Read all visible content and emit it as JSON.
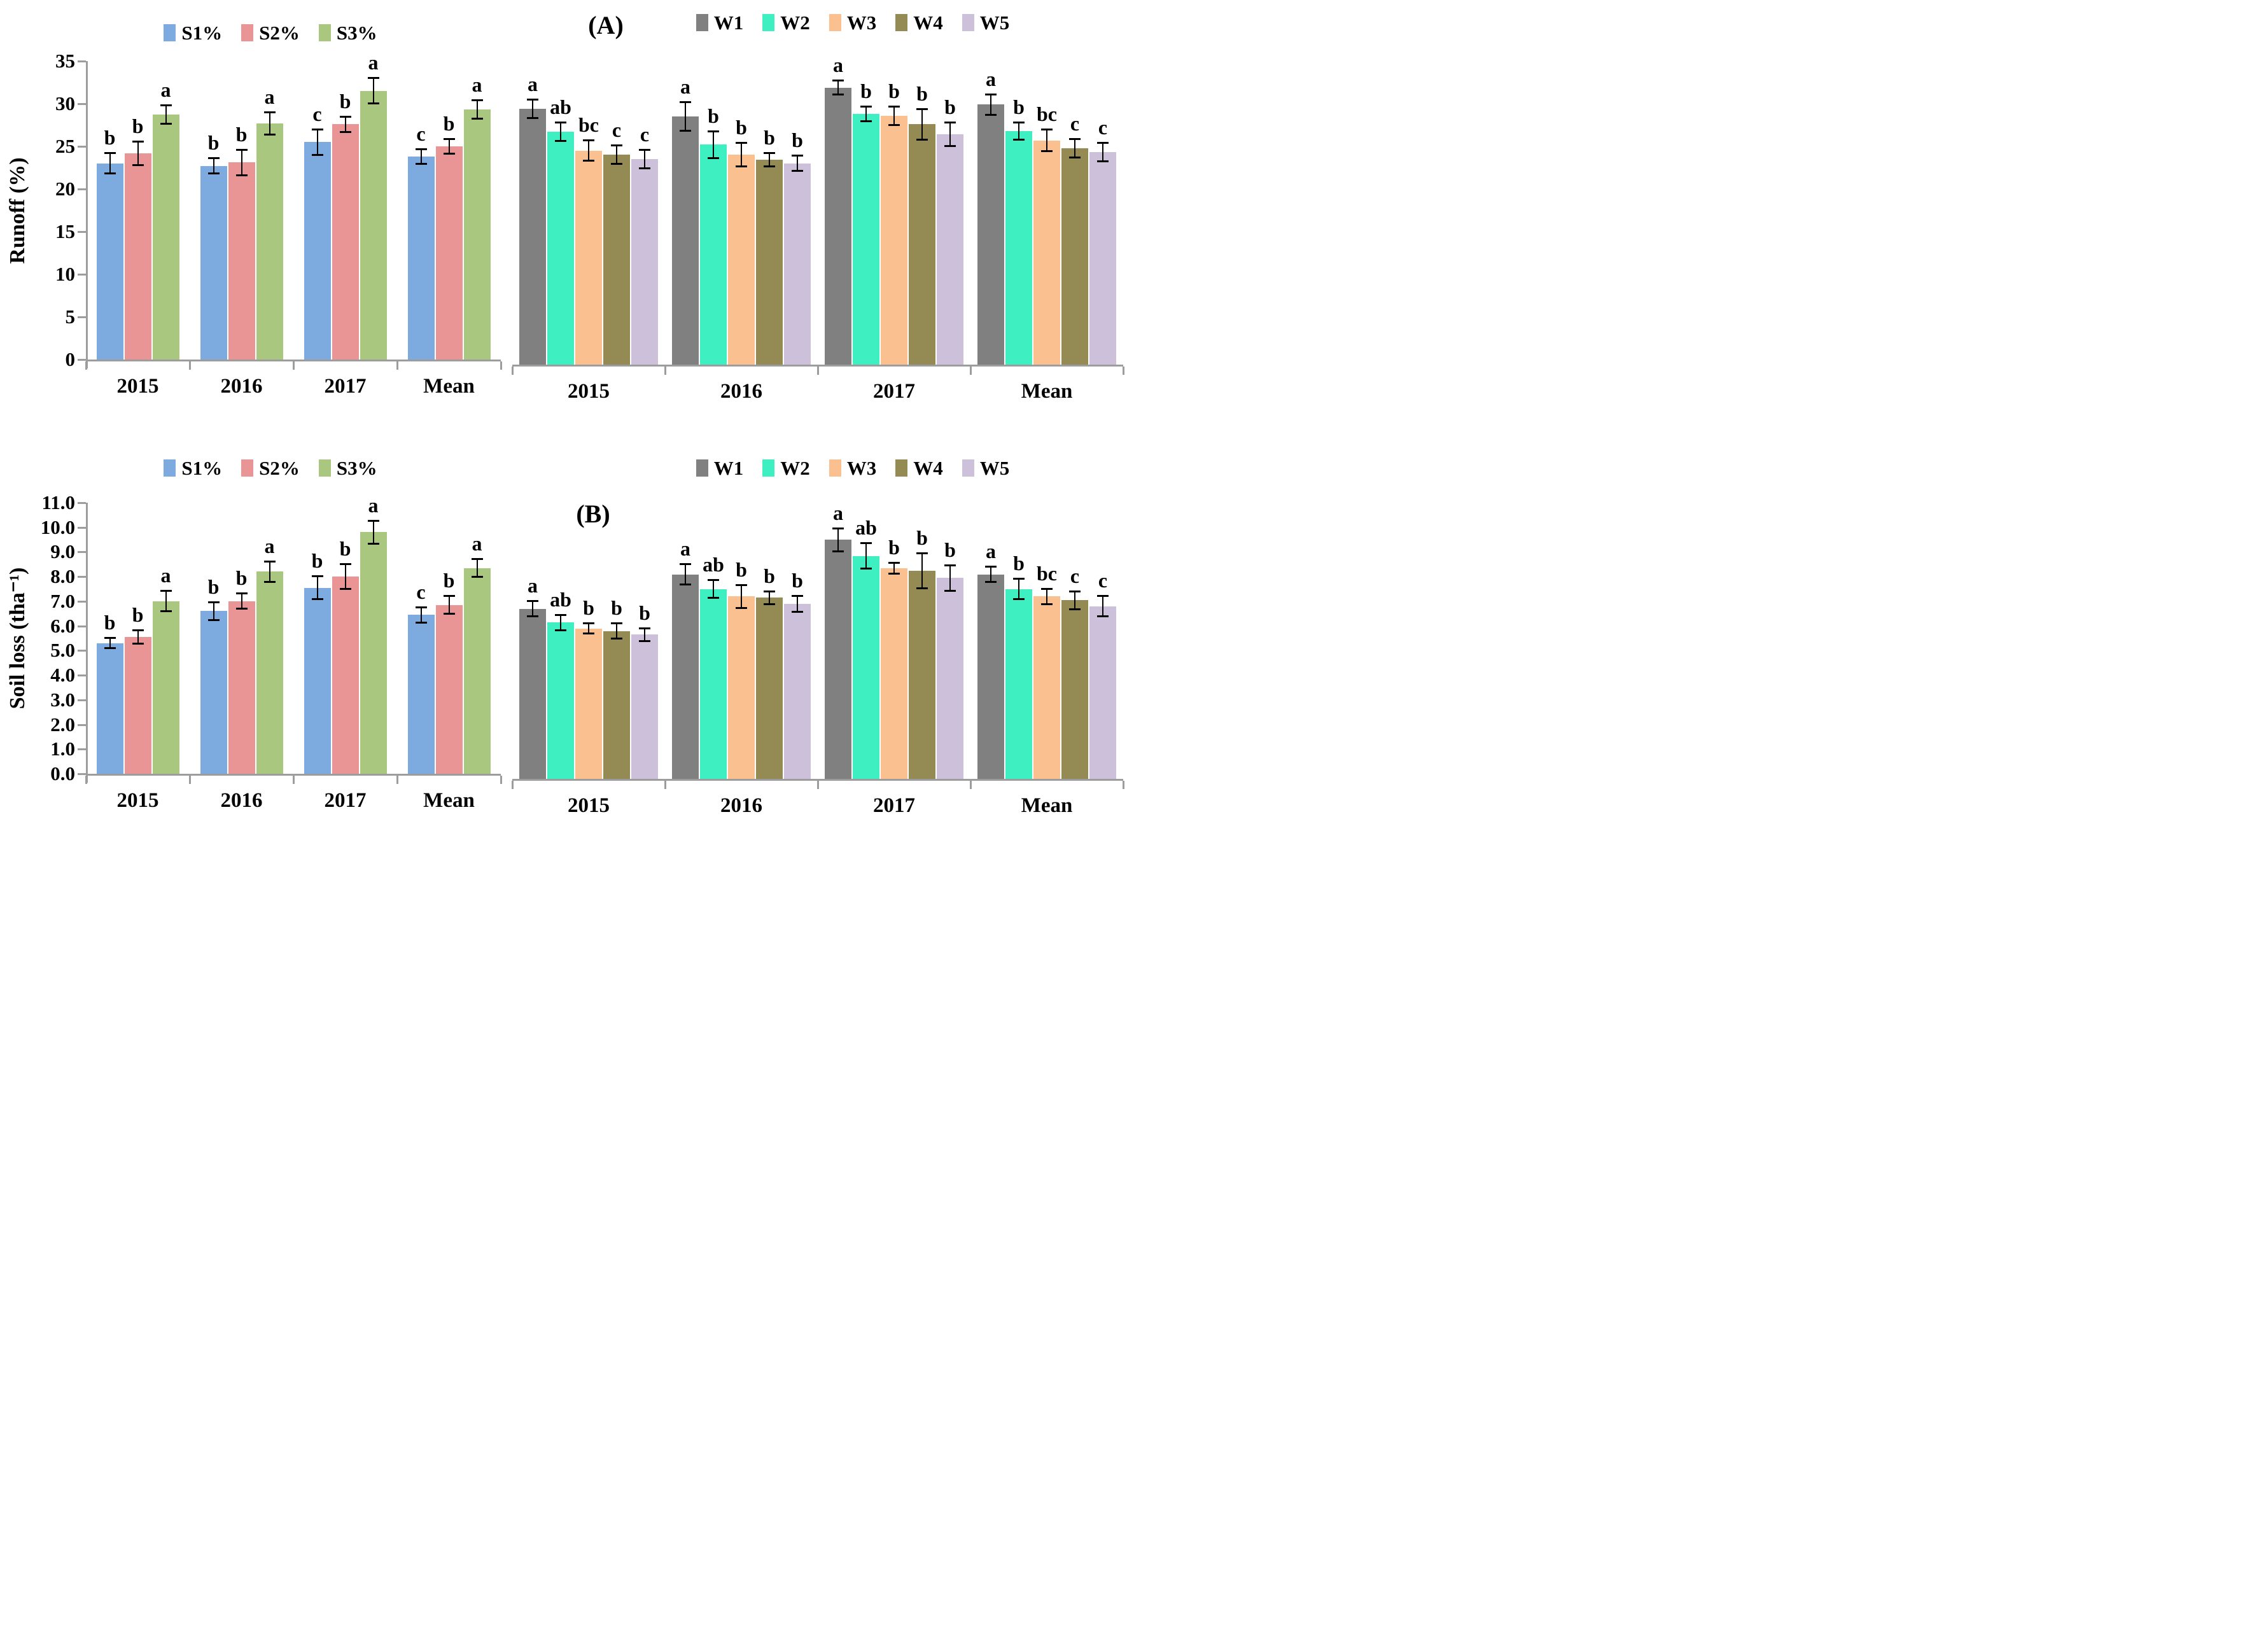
{
  "panels": {
    "A": {
      "label": "(A)",
      "ylabel": "Runoff (%)",
      "ymax": 35,
      "ystep": 5,
      "yticks": [
        "35",
        "30",
        "25",
        "20",
        "15",
        "10",
        "5",
        "0"
      ]
    },
    "B": {
      "label": "(B)",
      "ylabel": "Soil loss (tha⁻¹)",
      "ymax": 11,
      "ystep": 1,
      "yticks": [
        "11.0",
        "10.0",
        "9.0",
        "8.0",
        "7.0",
        "6.0",
        "5.0",
        "4.0",
        "3.0",
        "2.0",
        "1.0",
        "0.0"
      ]
    }
  },
  "colors": {
    "s1": "#7EABDF",
    "s2": "#E99495",
    "s3": "#A9C77F",
    "w1": "#808080",
    "w2": "#3EEFC1",
    "w3": "#FAC090",
    "w4": "#948A54",
    "w5": "#CCC0DA",
    "axis": "#9D9D9D",
    "error_bar": "#000000"
  },
  "chart_data": [
    {
      "type": "bar",
      "panel": "A",
      "side": "left",
      "ylabel": "Runoff (%)",
      "ylim": [
        0,
        35
      ],
      "grid": false,
      "legend_position": "top",
      "categories": [
        "2015",
        "2016",
        "2017",
        "Mean"
      ],
      "series": [
        {
          "name": "S1%",
          "color": "#7EABDF",
          "values": [
            23.0,
            22.7,
            25.5,
            23.8
          ],
          "errors": [
            1.3,
            1.0,
            1.6,
            1.0
          ],
          "letters": [
            "b",
            "b",
            "c",
            "c"
          ]
        },
        {
          "name": "S2%",
          "color": "#E99495",
          "values": [
            24.2,
            23.1,
            27.6,
            25.0
          ],
          "errors": [
            1.5,
            1.6,
            1.0,
            1.0
          ],
          "letters": [
            "b",
            "b",
            "b",
            "b"
          ]
        },
        {
          "name": "S3%",
          "color": "#A9C77F",
          "values": [
            28.7,
            27.7,
            31.5,
            29.3
          ],
          "errors": [
            1.2,
            1.4,
            1.6,
            1.2
          ],
          "letters": [
            "a",
            "a",
            "a",
            "a"
          ]
        }
      ]
    },
    {
      "type": "bar",
      "panel": "A",
      "side": "right",
      "ylabel": "Runoff (%)",
      "ylim": [
        0,
        35
      ],
      "grid": false,
      "legend_position": "top",
      "categories": [
        "2015",
        "2016",
        "2017",
        "Mean"
      ],
      "series": [
        {
          "name": "W1",
          "color": "#808080",
          "values": [
            30.0,
            29.1,
            32.5,
            30.5
          ],
          "errors": [
            1.2,
            1.8,
            0.9,
            1.3
          ],
          "letters": [
            "a",
            "a",
            "a",
            "a"
          ]
        },
        {
          "name": "W2",
          "color": "#3EEFC1",
          "values": [
            27.3,
            25.8,
            29.4,
            27.4
          ],
          "errors": [
            1.2,
            1.7,
            1.0,
            1.1
          ],
          "letters": [
            "ab",
            "b",
            "b",
            "b"
          ]
        },
        {
          "name": "W3",
          "color": "#FAC090",
          "values": [
            25.1,
            24.6,
            29.2,
            26.3
          ],
          "errors": [
            1.3,
            1.5,
            1.2,
            1.4
          ],
          "letters": [
            "bc",
            "b",
            "b",
            "bc"
          ]
        },
        {
          "name": "W4",
          "color": "#948A54",
          "values": [
            24.6,
            24.0,
            28.2,
            25.4
          ],
          "errors": [
            1.2,
            0.9,
            1.9,
            1.2
          ],
          "letters": [
            "c",
            "b",
            "b",
            "c"
          ]
        },
        {
          "name": "W5",
          "color": "#CCC0DA",
          "values": [
            24.1,
            23.6,
            27.0,
            24.9
          ],
          "errors": [
            1.2,
            1.0,
            1.5,
            1.2
          ],
          "letters": [
            "c",
            "b",
            "b",
            "c"
          ]
        }
      ]
    },
    {
      "type": "bar",
      "panel": "B",
      "side": "left",
      "ylabel": "Soil loss (tha⁻¹)",
      "ylim": [
        0,
        11
      ],
      "grid": false,
      "legend_position": "top",
      "categories": [
        "2015",
        "2016",
        "2017",
        "Mean"
      ],
      "series": [
        {
          "name": "S1%",
          "color": "#7EABDF",
          "values": [
            5.3,
            6.6,
            7.55,
            6.45
          ],
          "errors": [
            0.25,
            0.4,
            0.5,
            0.35
          ],
          "letters": [
            "b",
            "b",
            "b",
            "c"
          ]
        },
        {
          "name": "S2%",
          "color": "#E99495",
          "values": [
            5.55,
            7.0,
            8.0,
            6.85
          ],
          "errors": [
            0.3,
            0.35,
            0.55,
            0.4
          ],
          "letters": [
            "b",
            "b",
            "b",
            "b"
          ]
        },
        {
          "name": "S3%",
          "color": "#A9C77F",
          "values": [
            7.0,
            8.2,
            9.8,
            8.35
          ],
          "errors": [
            0.45,
            0.45,
            0.5,
            0.4
          ],
          "letters": [
            "a",
            "a",
            "a",
            "a"
          ]
        }
      ]
    },
    {
      "type": "bar",
      "panel": "B",
      "side": "right",
      "ylabel": "Soil loss (tha⁻¹)",
      "ylim": [
        0,
        11
      ],
      "grid": false,
      "legend_position": "top",
      "categories": [
        "2015",
        "2016",
        "2017",
        "Mean"
      ],
      "series": [
        {
          "name": "W1",
          "color": "#808080",
          "values": [
            6.9,
            8.3,
            9.7,
            8.3
          ],
          "errors": [
            0.35,
            0.45,
            0.5,
            0.35
          ],
          "letters": [
            "a",
            "a",
            "a",
            "a"
          ]
        },
        {
          "name": "W2",
          "color": "#3EEFC1",
          "values": [
            6.35,
            7.7,
            9.05,
            7.7
          ],
          "errors": [
            0.35,
            0.4,
            0.55,
            0.45
          ],
          "letters": [
            "ab",
            "ab",
            "ab",
            "b"
          ]
        },
        {
          "name": "W3",
          "color": "#FAC090",
          "values": [
            6.1,
            7.4,
            8.55,
            7.4
          ],
          "errors": [
            0.25,
            0.5,
            0.25,
            0.35
          ],
          "letters": [
            "b",
            "b",
            "b",
            "bc"
          ]
        },
        {
          "name": "W4",
          "color": "#948A54",
          "values": [
            6.0,
            7.35,
            8.45,
            7.25
          ],
          "errors": [
            0.35,
            0.3,
            0.75,
            0.4
          ],
          "letters": [
            "b",
            "b",
            "b",
            "c"
          ]
        },
        {
          "name": "W5",
          "color": "#CCC0DA",
          "values": [
            5.85,
            7.1,
            8.15,
            7.0
          ],
          "errors": [
            0.3,
            0.35,
            0.55,
            0.45
          ],
          "letters": [
            "b",
            "b",
            "b",
            "c"
          ]
        }
      ]
    }
  ]
}
